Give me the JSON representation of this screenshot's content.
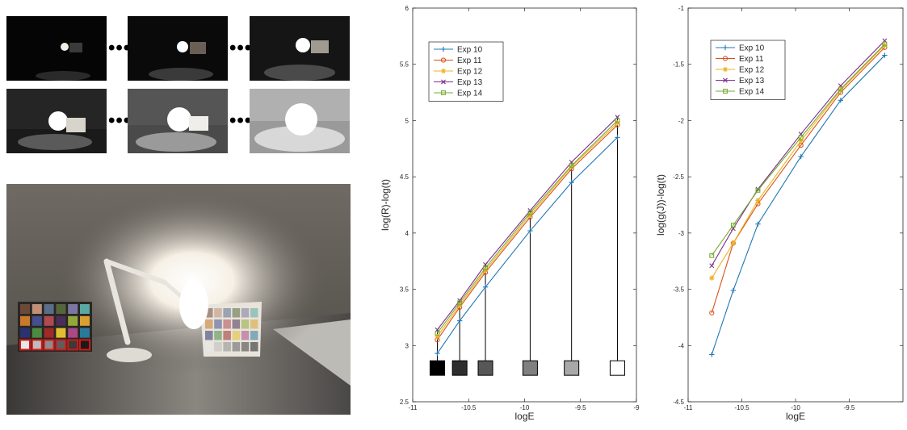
{
  "colors": {
    "exp10": "#1f77b4",
    "exp11": "#d95319",
    "exp12": "#edb120",
    "exp13": "#7e2f8e",
    "exp14": "#77ac30"
  },
  "thumbnails": {
    "icons": [
      "dark-lamp-photo",
      "mid-lamp-photo",
      "bright-lamp-photo"
    ],
    "separator": "•••"
  },
  "chart_data": [
    {
      "type": "line",
      "xlabel": "logE",
      "ylabel": "log(R)-log(t)",
      "xlim": [
        -11,
        -9
      ],
      "ylim": [
        2.5,
        6
      ],
      "xticks": [
        -11,
        -10.5,
        -10,
        -9.5,
        -9
      ],
      "xtick_labels": [
        "-11",
        "-10.5",
        "-10",
        "-9.5",
        "-9"
      ],
      "yticks": [
        2.5,
        3,
        3.5,
        4,
        4.5,
        5,
        5.5,
        6
      ],
      "ytick_labels": [
        "2.5",
        "3",
        "3.5",
        "4",
        "4.5",
        "5",
        "5.5",
        "6"
      ],
      "legend_position": "top-left",
      "x": [
        -10.78,
        -10.58,
        -10.35,
        -9.95,
        -9.58,
        -9.17
      ],
      "series": [
        {
          "name": "Exp 10",
          "marker": "plus",
          "values": [
            2.93,
            3.22,
            3.52,
            4.02,
            4.45,
            4.85
          ]
        },
        {
          "name": "Exp 11",
          "marker": "circle",
          "values": [
            3.05,
            3.34,
            3.65,
            4.14,
            4.57,
            4.96
          ]
        },
        {
          "name": "Exp 12",
          "marker": "star",
          "values": [
            3.08,
            3.36,
            3.67,
            4.16,
            4.59,
            4.98
          ]
        },
        {
          "name": "Exp 13",
          "marker": "x",
          "values": [
            3.14,
            3.4,
            3.72,
            4.2,
            4.63,
            5.03
          ]
        },
        {
          "name": "Exp 14",
          "marker": "square",
          "values": [
            3.11,
            3.38,
            3.69,
            4.18,
            4.6,
            5.0
          ]
        }
      ],
      "patch_level": 2.8,
      "patch_grays": [
        "#000000",
        "#2e2e2e",
        "#575757",
        "#808080",
        "#a8a8a8",
        "#ffffff"
      ]
    },
    {
      "type": "line",
      "xlabel": "logE",
      "ylabel": "log(g(J))-log(t)",
      "xlim": [
        -11,
        -9
      ],
      "ylim": [
        -4.5,
        -1
      ],
      "xticks": [
        -11,
        -10.5,
        -10,
        -9.5
      ],
      "xtick_labels": [
        "-11",
        "-10.5",
        "-10",
        "-9.5"
      ],
      "yticks": [
        -4.5,
        -4,
        -3.5,
        -3,
        -2.5,
        -2,
        -1.5,
        -1
      ],
      "ytick_labels": [
        "-4.5",
        "-4",
        "-3.5",
        "-3",
        "-2.5",
        "-2",
        "-1.5",
        "-1"
      ],
      "legend_position": "top-left",
      "x": [
        -10.78,
        -10.58,
        -10.35,
        -9.95,
        -9.58,
        -9.17
      ],
      "series": [
        {
          "name": "Exp 10",
          "marker": "plus",
          "values": [
            -4.08,
            -3.51,
            -2.92,
            -2.32,
            -1.82,
            -1.42
          ]
        },
        {
          "name": "Exp 11",
          "marker": "circle",
          "values": [
            -3.71,
            -3.09,
            -2.74,
            -2.22,
            -1.75,
            -1.35
          ]
        },
        {
          "name": "Exp 12",
          "marker": "star",
          "values": [
            -3.4,
            -3.09,
            -2.71,
            -2.18,
            -1.73,
            -1.33
          ]
        },
        {
          "name": "Exp 13",
          "marker": "x",
          "values": [
            -3.29,
            -2.96,
            -2.61,
            -2.12,
            -1.69,
            -1.29
          ]
        },
        {
          "name": "Exp 14",
          "marker": "square",
          "values": [
            -3.2,
            -2.93,
            -2.62,
            -2.15,
            -1.72,
            -1.32
          ]
        }
      ]
    }
  ]
}
